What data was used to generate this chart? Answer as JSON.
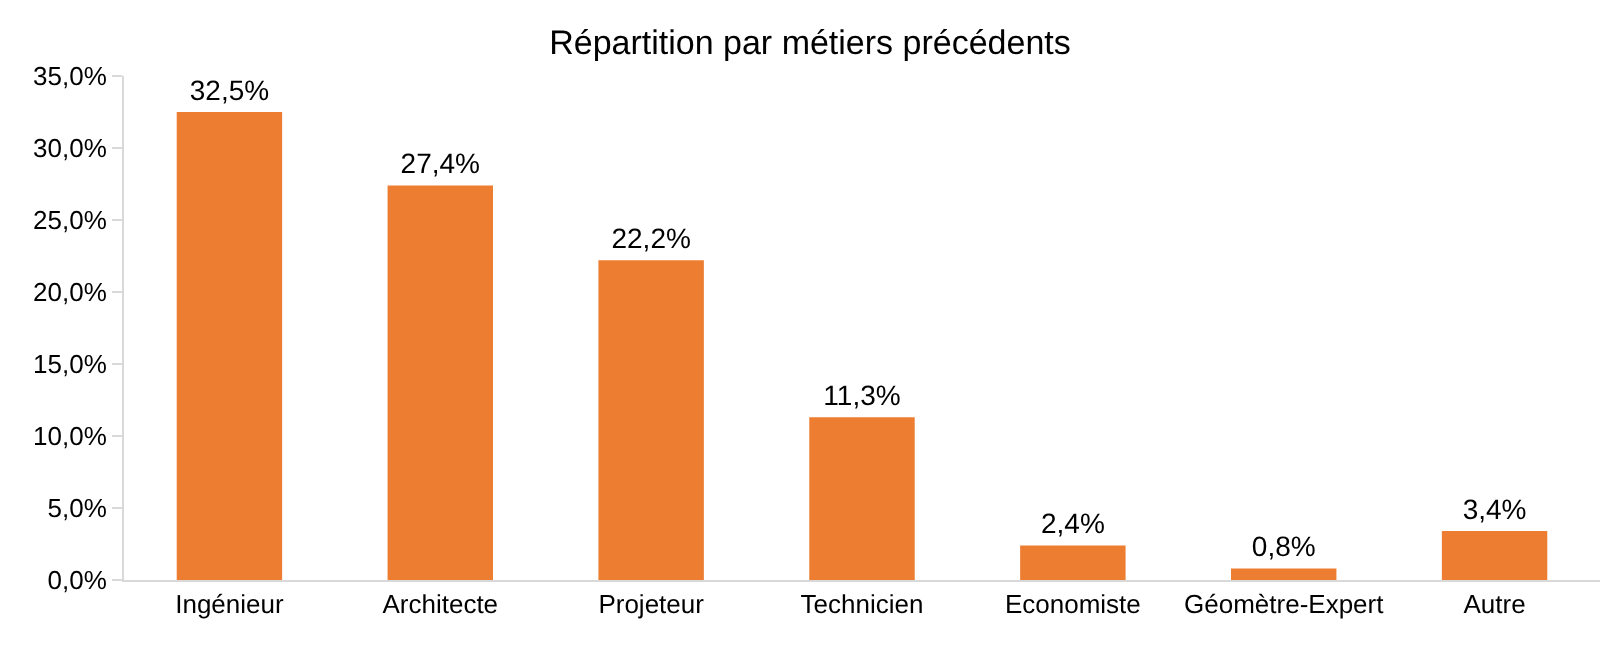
{
  "chart_data": {
    "type": "bar",
    "title": "Répartition par métiers précédents",
    "categories": [
      "Ingénieur",
      "Architecte",
      "Projeteur",
      "Technicien",
      "Economiste",
      "Géomètre-Expert",
      "Autre"
    ],
    "values": [
      32.5,
      27.4,
      22.2,
      11.3,
      2.4,
      0.8,
      3.4
    ],
    "value_labels": [
      "32,5%",
      "27,4%",
      "22,2%",
      "11,3%",
      "2,4%",
      "0,8%",
      "3,4%"
    ],
    "color": "#ed7d31",
    "ylim": [
      0,
      35
    ],
    "yticks": [
      {
        "value": 0,
        "label": "0,0%"
      },
      {
        "value": 5,
        "label": "5,0%"
      },
      {
        "value": 10,
        "label": "10,0%"
      },
      {
        "value": 15,
        "label": "15,0%"
      },
      {
        "value": 20,
        "label": "20,0%"
      },
      {
        "value": 25,
        "label": "25,0%"
      },
      {
        "value": 30,
        "label": "30,0%"
      },
      {
        "value": 35,
        "label": "35,0%"
      }
    ],
    "line_style": "solid"
  }
}
